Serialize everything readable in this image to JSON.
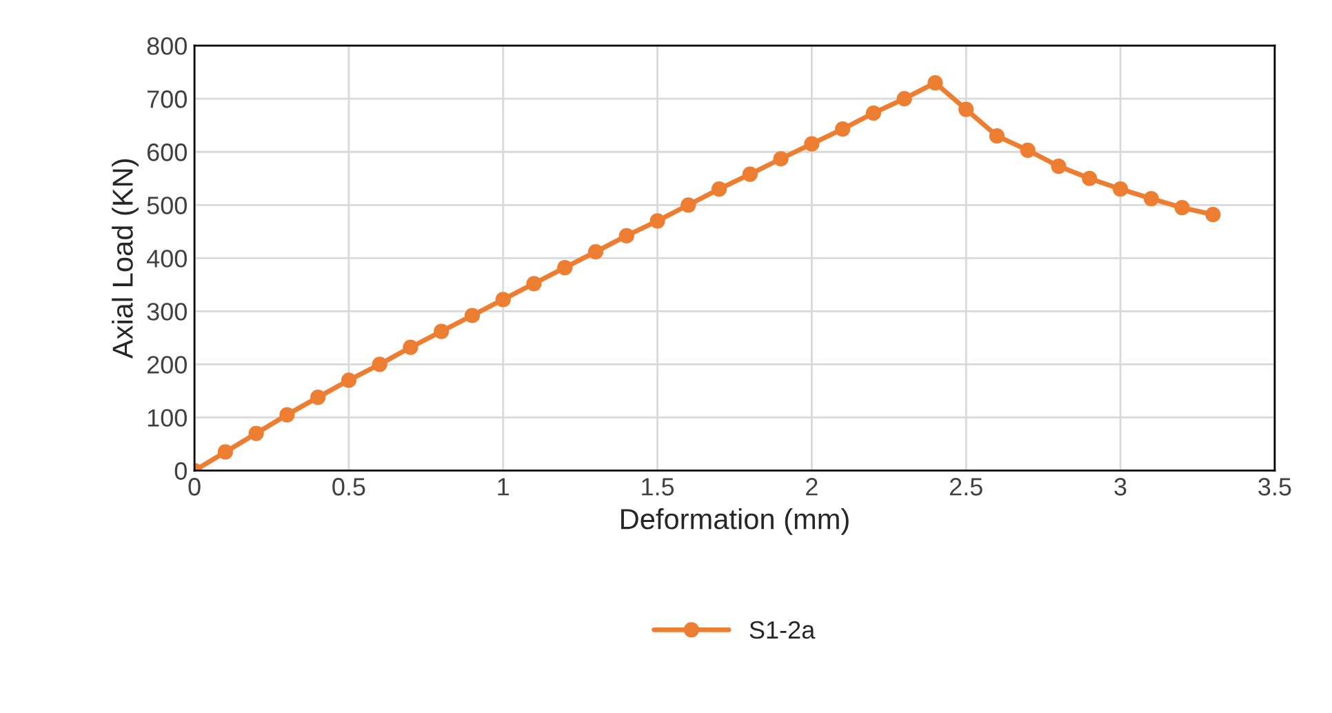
{
  "chart_data": {
    "type": "line",
    "xlabel": "Deformation (mm)",
    "ylabel": "Axial Load (KN)",
    "xlim": [
      0,
      3.5
    ],
    "xticks": [
      0,
      0.5,
      1,
      1.5,
      2,
      2.5,
      3,
      3.5
    ],
    "ylim": [
      0,
      800
    ],
    "yticks": [
      0,
      100,
      200,
      300,
      400,
      500,
      600,
      700,
      800
    ],
    "grid": true,
    "legend": "bottom",
    "marker": "circle",
    "line_style": "solid",
    "series": [
      {
        "name": "S1-2a",
        "color": "#ed7d31",
        "x": [
          0,
          0.1,
          0.2,
          0.3,
          0.4,
          0.5,
          0.6,
          0.7,
          0.8,
          0.9,
          1.0,
          1.1,
          1.2,
          1.3,
          1.4,
          1.5,
          1.6,
          1.7,
          1.8,
          1.9,
          2.0,
          2.1,
          2.2,
          2.3,
          2.4,
          2.5,
          2.6,
          2.7,
          2.8,
          2.9,
          3.0,
          3.1,
          3.2,
          3.3
        ],
        "values": [
          0,
          35,
          70,
          105,
          138,
          170,
          200,
          232,
          262,
          292,
          322,
          352,
          382,
          412,
          442,
          470,
          500,
          530,
          558,
          587,
          615,
          643,
          673,
          700,
          730,
          680,
          630,
          603,
          573,
          550,
          530,
          512,
          495,
          482
        ]
      }
    ]
  }
}
